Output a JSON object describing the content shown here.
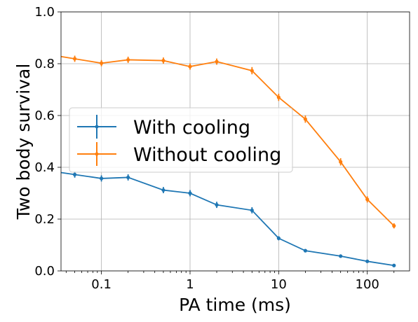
{
  "chart_data": {
    "type": "line",
    "xlabel": "PA time (ms)",
    "ylabel": "Two body survival",
    "xscale": "log",
    "xlim": [
      0.035,
      300
    ],
    "ylim": [
      0.0,
      1.0
    ],
    "grid": true,
    "legend_position": "center-left",
    "x_ticks": [
      0.1,
      1,
      10,
      100
    ],
    "x_tick_labels": [
      "0.1",
      "1",
      "10",
      "100"
    ],
    "y_ticks": [
      0.0,
      0.2,
      0.4,
      0.6,
      0.8,
      1.0
    ],
    "y_tick_labels": [
      "0.0",
      "0.2",
      "0.4",
      "0.6",
      "0.8",
      "1.0"
    ],
    "x": [
      0.05,
      0.1,
      0.2,
      0.5,
      1,
      2,
      5,
      10,
      20,
      50,
      100,
      200
    ],
    "series": [
      {
        "name": "With cooling",
        "color": "#1f77b4",
        "values": [
          0.372,
          0.357,
          0.361,
          0.312,
          0.3,
          0.255,
          0.234,
          0.126,
          0.078,
          0.057,
          0.037,
          0.021
        ],
        "errors": [
          0.012,
          0.012,
          0.012,
          0.012,
          0.012,
          0.012,
          0.012,
          0.008,
          0.006,
          0.005,
          0.004,
          0.003
        ]
      },
      {
        "name": "Without cooling",
        "color": "#ff7f0e",
        "values": [
          0.819,
          0.802,
          0.815,
          0.812,
          0.789,
          0.808,
          0.773,
          0.67,
          0.586,
          0.421,
          0.276,
          0.174
        ],
        "errors": [
          0.012,
          0.012,
          0.012,
          0.012,
          0.012,
          0.012,
          0.014,
          0.014,
          0.014,
          0.014,
          0.012,
          0.01
        ]
      }
    ]
  }
}
